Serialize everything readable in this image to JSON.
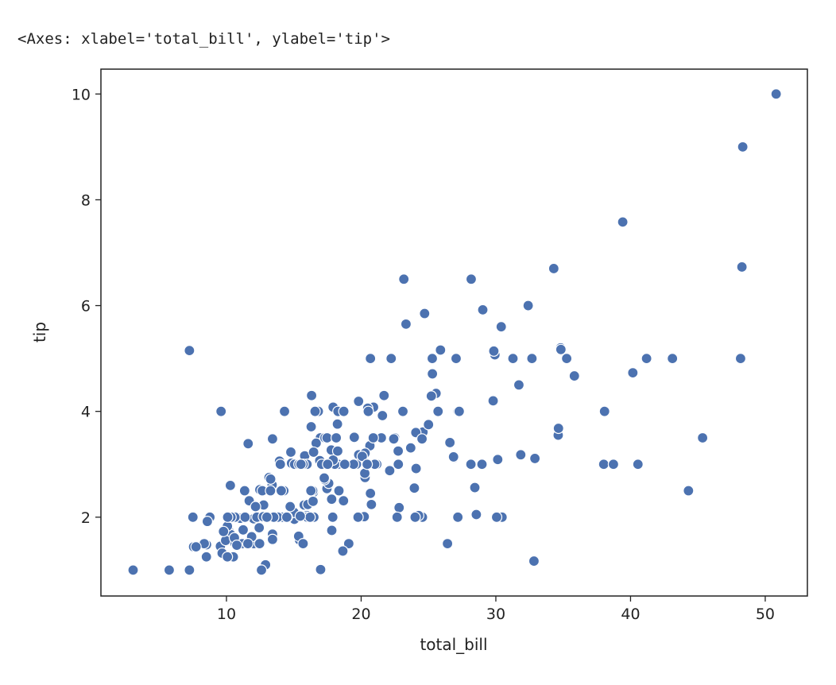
{
  "output_repr": "<Axes: xlabel='total_bill', ylabel='tip'>",
  "chart_data": {
    "type": "scatter",
    "title": "",
    "xlabel": "total_bill",
    "ylabel": "tip",
    "xlim": [
      0.68,
      53.13
    ],
    "ylim": [
      0.51,
      10.47
    ],
    "xticks": [
      10,
      20,
      30,
      40,
      50
    ],
    "yticks": [
      2,
      4,
      6,
      8,
      10
    ],
    "grid": false,
    "marker_color": "#4c72b0",
    "edge_color": "#ffffff",
    "points": [
      [
        16.99,
        1.01
      ],
      [
        10.34,
        1.66
      ],
      [
        21.01,
        3.5
      ],
      [
        23.68,
        3.31
      ],
      [
        24.59,
        3.61
      ],
      [
        25.29,
        4.71
      ],
      [
        8.77,
        2.0
      ],
      [
        26.88,
        3.12
      ],
      [
        15.04,
        1.96
      ],
      [
        14.78,
        3.23
      ],
      [
        10.27,
        1.71
      ],
      [
        35.26,
        5.0
      ],
      [
        15.42,
        1.57
      ],
      [
        18.43,
        3.0
      ],
      [
        14.83,
        3.02
      ],
      [
        21.58,
        3.92
      ],
      [
        10.33,
        1.67
      ],
      [
        16.29,
        3.71
      ],
      [
        16.97,
        3.5
      ],
      [
        20.65,
        3.35
      ],
      [
        17.92,
        4.08
      ],
      [
        20.29,
        2.75
      ],
      [
        15.77,
        2.23
      ],
      [
        39.42,
        7.58
      ],
      [
        19.82,
        3.18
      ],
      [
        17.81,
        2.34
      ],
      [
        13.37,
        2.0
      ],
      [
        12.69,
        2.0
      ],
      [
        21.7,
        4.3
      ],
      [
        19.65,
        3.0
      ],
      [
        9.55,
        1.45
      ],
      [
        18.35,
        2.5
      ],
      [
        15.06,
        3.0
      ],
      [
        20.69,
        2.45
      ],
      [
        17.78,
        3.27
      ],
      [
        24.06,
        3.6
      ],
      [
        16.31,
        2.0
      ],
      [
        16.93,
        3.07
      ],
      [
        18.69,
        2.31
      ],
      [
        31.27,
        5.0
      ],
      [
        16.04,
        2.24
      ],
      [
        17.46,
        2.54
      ],
      [
        13.94,
        3.06
      ],
      [
        9.68,
        1.32
      ],
      [
        30.4,
        5.6
      ],
      [
        18.29,
        3.0
      ],
      [
        22.23,
        5.0
      ],
      [
        32.4,
        6.0
      ],
      [
        28.55,
        2.05
      ],
      [
        18.04,
        3.0
      ],
      [
        12.54,
        2.5
      ],
      [
        10.29,
        2.6
      ],
      [
        34.81,
        5.2
      ],
      [
        9.94,
        1.56
      ],
      [
        25.56,
        4.34
      ],
      [
        19.49,
        3.51
      ],
      [
        38.01,
        3.0
      ],
      [
        26.41,
        1.5
      ],
      [
        11.24,
        1.76
      ],
      [
        48.27,
        6.73
      ],
      [
        20.29,
        3.21
      ],
      [
        13.81,
        2.0
      ],
      [
        11.02,
        1.98
      ],
      [
        18.29,
        3.76
      ],
      [
        17.59,
        2.64
      ],
      [
        20.08,
        3.15
      ],
      [
        16.45,
        2.47
      ],
      [
        3.07,
        1.0
      ],
      [
        20.23,
        2.01
      ],
      [
        15.01,
        2.09
      ],
      [
        12.02,
        1.97
      ],
      [
        17.07,
        3.0
      ],
      [
        26.86,
        3.14
      ],
      [
        25.28,
        5.0
      ],
      [
        14.73,
        2.2
      ],
      [
        10.51,
        1.25
      ],
      [
        17.92,
        3.08
      ],
      [
        27.2,
        4.0
      ],
      [
        22.76,
        3.0
      ],
      [
        17.29,
        2.71
      ],
      [
        19.44,
        3.0
      ],
      [
        16.66,
        3.4
      ],
      [
        10.07,
        1.83
      ],
      [
        32.68,
        5.0
      ],
      [
        15.98,
        2.03
      ],
      [
        34.83,
        5.17
      ],
      [
        13.03,
        2.0
      ],
      [
        18.28,
        4.0
      ],
      [
        24.71,
        5.85
      ],
      [
        21.16,
        3.0
      ],
      [
        28.97,
        3.0
      ],
      [
        22.49,
        3.5
      ],
      [
        5.75,
        1.0
      ],
      [
        16.32,
        4.3
      ],
      [
        22.75,
        3.25
      ],
      [
        40.17,
        4.73
      ],
      [
        27.28,
        4.0
      ],
      [
        12.03,
        1.5
      ],
      [
        21.01,
        3.0
      ],
      [
        12.46,
        1.5
      ],
      [
        11.35,
        2.5
      ],
      [
        15.38,
        3.0
      ],
      [
        44.3,
        2.5
      ],
      [
        22.42,
        3.48
      ],
      [
        20.92,
        4.08
      ],
      [
        15.36,
        1.64
      ],
      [
        20.49,
        4.06
      ],
      [
        25.21,
        4.29
      ],
      [
        18.24,
        3.76
      ],
      [
        14.31,
        4.0
      ],
      [
        14.0,
        3.0
      ],
      [
        7.25,
        1.0
      ],
      [
        38.07,
        4.0
      ],
      [
        23.95,
        2.55
      ],
      [
        25.71,
        4.0
      ],
      [
        17.31,
        3.5
      ],
      [
        29.93,
        5.07
      ],
      [
        10.65,
        1.5
      ],
      [
        12.43,
        1.8
      ],
      [
        24.08,
        2.92
      ],
      [
        11.69,
        2.31
      ],
      [
        13.42,
        1.68
      ],
      [
        14.26,
        2.5
      ],
      [
        15.95,
        2.0
      ],
      [
        12.48,
        2.52
      ],
      [
        29.8,
        4.2
      ],
      [
        8.52,
        1.48
      ],
      [
        14.52,
        2.0
      ],
      [
        11.38,
        2.0
      ],
      [
        22.82,
        2.18
      ],
      [
        19.08,
        1.5
      ],
      [
        20.27,
        2.83
      ],
      [
        11.17,
        1.5
      ],
      [
        12.26,
        2.0
      ],
      [
        18.26,
        3.25
      ],
      [
        8.51,
        1.25
      ],
      [
        10.33,
        2.0
      ],
      [
        14.15,
        2.0
      ],
      [
        16.0,
        2.0
      ],
      [
        13.16,
        2.75
      ],
      [
        17.47,
        3.5
      ],
      [
        34.3,
        6.7
      ],
      [
        41.19,
        5.0
      ],
      [
        27.05,
        5.0
      ],
      [
        16.43,
        2.3
      ],
      [
        8.35,
        1.5
      ],
      [
        18.64,
        1.36
      ],
      [
        11.87,
        1.63
      ],
      [
        9.78,
        1.73
      ],
      [
        7.51,
        2.0
      ],
      [
        14.07,
        2.5
      ],
      [
        13.13,
        2.0
      ],
      [
        17.26,
        2.74
      ],
      [
        24.55,
        2.0
      ],
      [
        19.77,
        2.0
      ],
      [
        29.85,
        5.14
      ],
      [
        48.17,
        5.0
      ],
      [
        25.0,
        3.75
      ],
      [
        13.39,
        2.61
      ],
      [
        16.49,
        2.0
      ],
      [
        21.5,
        3.5
      ],
      [
        12.66,
        2.5
      ],
      [
        16.21,
        2.0
      ],
      [
        13.81,
        2.0
      ],
      [
        17.51,
        3.0
      ],
      [
        24.52,
        3.48
      ],
      [
        20.76,
        2.24
      ],
      [
        31.71,
        4.5
      ],
      [
        10.59,
        1.61
      ],
      [
        10.63,
        2.0
      ],
      [
        50.81,
        10.0
      ],
      [
        15.81,
        3.16
      ],
      [
        7.25,
        5.15
      ],
      [
        31.85,
        3.18
      ],
      [
        16.82,
        4.0
      ],
      [
        32.9,
        3.11
      ],
      [
        17.89,
        2.0
      ],
      [
        14.48,
        2.0
      ],
      [
        9.6,
        4.0
      ],
      [
        34.63,
        3.55
      ],
      [
        34.65,
        3.68
      ],
      [
        23.33,
        5.65
      ],
      [
        45.35,
        3.5
      ],
      [
        23.17,
        6.5
      ],
      [
        40.55,
        3.0
      ],
      [
        20.69,
        5.0
      ],
      [
        20.9,
        3.5
      ],
      [
        30.46,
        2.0
      ],
      [
        18.15,
        3.5
      ],
      [
        23.1,
        4.0
      ],
      [
        15.69,
        1.5
      ],
      [
        19.81,
        4.19
      ],
      [
        28.44,
        2.56
      ],
      [
        15.48,
        2.02
      ],
      [
        16.58,
        4.0
      ],
      [
        7.56,
        1.44
      ],
      [
        10.34,
        2.0
      ],
      [
        43.11,
        5.0
      ],
      [
        13.0,
        2.0
      ],
      [
        13.51,
        2.0
      ],
      [
        18.71,
        4.0
      ],
      [
        12.74,
        2.01
      ],
      [
        13.0,
        2.0
      ],
      [
        16.4,
        2.5
      ],
      [
        20.53,
        4.0
      ],
      [
        16.47,
        3.23
      ],
      [
        26.59,
        3.41
      ],
      [
        38.73,
        3.0
      ],
      [
        24.27,
        2.03
      ],
      [
        12.76,
        2.23
      ],
      [
        30.06,
        2.0
      ],
      [
        25.89,
        5.16
      ],
      [
        48.33,
        9.0
      ],
      [
        13.27,
        2.5
      ],
      [
        28.17,
        6.5
      ],
      [
        12.9,
        1.1
      ],
      [
        28.15,
        3.0
      ],
      [
        11.59,
        1.5
      ],
      [
        7.74,
        1.44
      ],
      [
        30.14,
        3.09
      ],
      [
        12.16,
        2.2
      ],
      [
        13.42,
        3.48
      ],
      [
        8.58,
        1.92
      ],
      [
        15.98,
        3.0
      ],
      [
        13.42,
        1.58
      ],
      [
        16.27,
        2.5
      ],
      [
        10.09,
        2.0
      ],
      [
        20.45,
        3.0
      ],
      [
        13.28,
        2.72
      ],
      [
        22.12,
        2.88
      ],
      [
        24.01,
        2.0
      ],
      [
        15.69,
        3.0
      ],
      [
        11.61,
        3.39
      ],
      [
        10.77,
        1.47
      ],
      [
        15.53,
        3.0
      ],
      [
        10.07,
        1.25
      ],
      [
        12.6,
        1.0
      ],
      [
        32.83,
        1.17
      ],
      [
        35.83,
        4.67
      ],
      [
        29.03,
        5.92
      ],
      [
        27.18,
        2.0
      ],
      [
        22.67,
        2.0
      ],
      [
        17.82,
        1.75
      ],
      [
        18.78,
        3.0
      ]
    ]
  }
}
